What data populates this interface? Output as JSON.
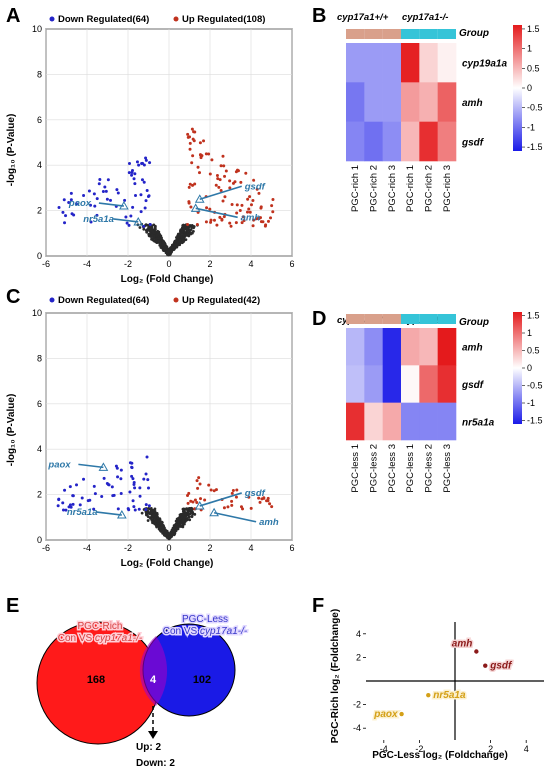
{
  "panels": {
    "A": {
      "letter": "A",
      "legend_down": "Down Regulated(64)",
      "legend_up": "Up Regulated(108)",
      "ylabel": "-log₁₀ (P-Value)",
      "xlabel": "Log₂ (Fold Change)",
      "xticks": [
        "-6",
        "-4",
        "-2",
        "0",
        "2",
        "4",
        "6"
      ],
      "yticks": [
        "0",
        "2",
        "4",
        "6",
        "8",
        "10"
      ],
      "genes": {
        "paox": "paox",
        "nr5a1a": "nr5a1a",
        "gsdf": "gsdf",
        "amh": "amh"
      }
    },
    "B": {
      "letter": "B",
      "group_label": "Group",
      "group1": "cyp17a1+/+",
      "group2": "cyp17a1-/-",
      "genes": [
        "cyp19a1a",
        "amh",
        "gsdf"
      ],
      "samples": [
        "PGC-rich 1",
        "PGC-rich 2",
        "PGC-rich 3",
        "PGC-rich 1",
        "PGC-rich 2",
        "PGC-rich 3"
      ],
      "colorbar_ticks": [
        "1.5",
        "1",
        "0.5",
        "0",
        "-0.5",
        "-1",
        "-1.5"
      ],
      "values": [
        [
          -0.7,
          -0.7,
          -0.7,
          1.55,
          0.3,
          0.1
        ],
        [
          -0.95,
          -0.7,
          -0.7,
          0.7,
          0.55,
          1.1
        ],
        [
          -0.85,
          -1.0,
          -0.8,
          0.5,
          1.45,
          0.9
        ]
      ]
    },
    "C": {
      "letter": "C",
      "legend_down": "Down Regulated(64)",
      "legend_up": "Up Regulated(42)",
      "ylabel": "-log₁₀ (P-Value)",
      "xlabel": "Log₂ (Fold Change)",
      "xticks": [
        "-6",
        "-4",
        "-2",
        "0",
        "2",
        "4",
        "6"
      ],
      "yticks": [
        "0",
        "2",
        "4",
        "6",
        "8",
        "10"
      ],
      "genes": {
        "paox": "paox",
        "nr5a1a": "nr5a1a",
        "gsdf": "gsdf",
        "amh": "amh"
      }
    },
    "D": {
      "letter": "D",
      "group_label": "Group",
      "group1": "cyp17a1+/+",
      "group2": "cyp17a1-/-",
      "genes": [
        "amh",
        "gsdf",
        "nr5a1a"
      ],
      "samples": [
        "PGC-less 1",
        "PGC-less 2",
        "PGC-less 3",
        "PGC-less 1",
        "PGC-less 2",
        "PGC-less 3"
      ],
      "colorbar_ticks": [
        "1.5",
        "1",
        "0.5",
        "0",
        "-0.5",
        "-1",
        "-1.5"
      ],
      "values": [
        [
          -0.5,
          -0.8,
          -1.5,
          0.6,
          0.5,
          1.6
        ],
        [
          -0.45,
          -0.7,
          -1.5,
          0.05,
          1.05,
          1.45
        ],
        [
          1.45,
          0.3,
          0.6,
          -0.85,
          -0.85,
          -0.85
        ]
      ]
    },
    "E": {
      "letter": "E",
      "set1_line1": "PGC-Rich",
      "set1_line2": "Con VS ",
      "set1_italic": "cyp17a1-/-",
      "set2_line1": "PGC-Less",
      "set2_line2": "Con VS ",
      "set2_italic": "cyp17a1-/-",
      "only1": "168",
      "overlap": "4",
      "only2": "102",
      "up": "Up: 2",
      "down": "Down: 2"
    },
    "F": {
      "letter": "F",
      "xlabel": "PGC-Less log₂ (Foldchange)",
      "ylabel": "PGC-Rich log₂ (Foldchange)",
      "xticks": [
        "-4",
        "-2",
        "2",
        "4"
      ],
      "yticks": [
        "4",
        "2",
        "-2",
        "-4"
      ]
    }
  },
  "chart_data": [
    {
      "type": "scatter",
      "panel": "A",
      "xlim": [
        -6,
        6
      ],
      "ylim": [
        0,
        10
      ],
      "grid": true,
      "xlabel": "Log₂ (Fold Change)",
      "ylabel": "-log₁₀ (P-Value)",
      "series": [
        {
          "name": "Down Regulated(64)",
          "color": "#2424c8"
        },
        {
          "name": "Up Regulated(108)",
          "color": "#c0321e"
        }
      ],
      "annotations": [
        {
          "gene": "paox",
          "x": -2.2,
          "y": 2.2
        },
        {
          "gene": "nr5a1a",
          "x": -1.5,
          "y": 1.5
        },
        {
          "gene": "gsdf",
          "x": 1.5,
          "y": 2.5
        },
        {
          "gene": "amh",
          "x": 1.3,
          "y": 2.1
        }
      ]
    },
    {
      "type": "scatter",
      "panel": "C",
      "xlim": [
        -6,
        6
      ],
      "ylim": [
        0,
        10
      ],
      "grid": true,
      "xlabel": "Log₂ (Fold Change)",
      "ylabel": "-log₁₀ (P-Value)",
      "series": [
        {
          "name": "Down Regulated(64)",
          "color": "#2424c8"
        },
        {
          "name": "Up Regulated(42)",
          "color": "#c0321e"
        }
      ],
      "annotations": [
        {
          "gene": "paox",
          "x": -3.2,
          "y": 3.2
        },
        {
          "gene": "nr5a1a",
          "x": -2.3,
          "y": 1.1
        },
        {
          "gene": "gsdf",
          "x": 1.5,
          "y": 1.5
        },
        {
          "gene": "amh",
          "x": 2.2,
          "y": 1.2
        }
      ]
    },
    {
      "type": "scatter",
      "panel": "F",
      "xlim": [
        -5,
        5
      ],
      "ylim": [
        -5,
        5
      ],
      "xlabel": "PGC-Less log₂ (Foldchange)",
      "ylabel": "PGC-Rich log₂ (Foldchange)",
      "points": [
        {
          "gene": "amh",
          "x": 1.2,
          "y": 2.5,
          "color": "#8b1a1a"
        },
        {
          "gene": "gsdf",
          "x": 1.7,
          "y": 1.3,
          "color": "#8b1a1a"
        },
        {
          "gene": "nr5a1a",
          "x": -1.5,
          "y": -1.2,
          "color": "#d4a017"
        },
        {
          "gene": "paox",
          "x": -3.0,
          "y": -2.8,
          "color": "#d4a017"
        }
      ]
    }
  ]
}
